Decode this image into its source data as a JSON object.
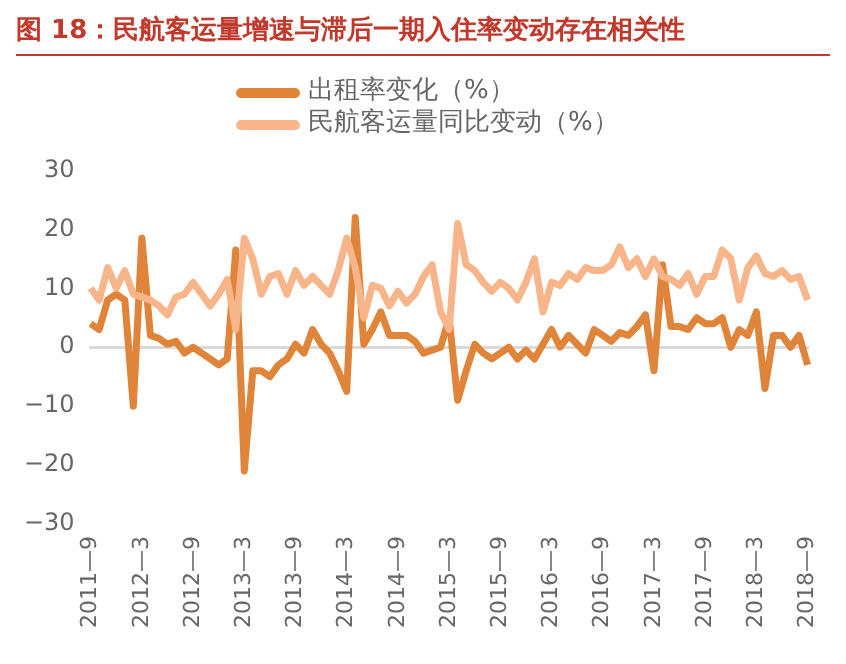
{
  "chart_data": {
    "type": "line",
    "title": "图 18：民航客运量增速与滞后一期入住率变动存在相关性",
    "categories": [
      "2011—9",
      null,
      null,
      null,
      null,
      null,
      "2012—3",
      null,
      null,
      null,
      null,
      null,
      "2012—9",
      null,
      null,
      null,
      null,
      null,
      "2013—3",
      null,
      null,
      null,
      null,
      null,
      "2013—9",
      null,
      null,
      null,
      null,
      null,
      "2014—3",
      null,
      null,
      null,
      null,
      null,
      "2014—9",
      null,
      null,
      null,
      null,
      null,
      "2015—3",
      null,
      null,
      null,
      null,
      null,
      "2015—9",
      null,
      null,
      null,
      null,
      null,
      "2016—3",
      null,
      null,
      null,
      null,
      null,
      "2016—9",
      null,
      null,
      null,
      null,
      null,
      "2017—3",
      null,
      null,
      null,
      null,
      null,
      "2017—9",
      null,
      null,
      null,
      null,
      null,
      "2018—3",
      null,
      null,
      null,
      null,
      null,
      "2018—9"
    ],
    "series": [
      {
        "name": "出租率变化（%）",
        "color": "#e0843a",
        "values": [
          4,
          3,
          8,
          9,
          8,
          -10,
          18.5,
          2,
          1.5,
          0.5,
          1,
          -1,
          0,
          -1,
          -2,
          -3,
          -2,
          16.5,
          -21,
          -4,
          -4,
          -5,
          -3,
          -2,
          0.5,
          -1,
          3,
          0.5,
          -1,
          -4,
          -7.5,
          22,
          0.5,
          3,
          6,
          2,
          2,
          2,
          1,
          -1,
          -0.5,
          0,
          5,
          -9,
          -4,
          0.5,
          -1,
          -2,
          -1,
          0,
          -2,
          -0.5,
          -2,
          0.5,
          3,
          0,
          2,
          0.5,
          -1,
          3,
          2,
          1,
          2.5,
          2,
          3.5,
          5.5,
          -4,
          14,
          3.5,
          3.5,
          3,
          5,
          4,
          4,
          5,
          0,
          3,
          2,
          6,
          -7,
          2,
          2,
          0,
          2,
          -3
        ]
      },
      {
        "name": "民航客运量同比变动（%）",
        "color": "#f8b58a",
        "values": [
          10,
          8,
          13.5,
          10,
          13,
          9,
          8.5,
          8,
          7,
          5.5,
          8.5,
          9,
          11,
          9,
          7,
          9,
          11.5,
          3,
          18.5,
          15,
          9,
          12,
          12.5,
          9,
          13,
          10.5,
          12,
          10.5,
          9,
          13,
          18.5,
          13.5,
          5,
          10.5,
          10,
          7,
          9.5,
          7.5,
          9,
          12,
          14,
          6,
          3,
          21,
          14,
          13,
          11,
          9.5,
          11,
          10,
          8,
          11,
          15,
          6,
          11,
          10.5,
          12.5,
          11.5,
          13.5,
          13,
          13,
          14,
          17,
          13.5,
          15,
          12,
          15,
          12,
          11.5,
          10.5,
          12.5,
          9,
          12,
          12,
          16.5,
          15,
          8,
          13.5,
          15.5,
          12.5,
          12,
          13,
          11.5,
          12,
          8
        ]
      }
    ],
    "ylim": [
      -30,
      30
    ],
    "yticks": [
      -30,
      -20,
      -10,
      0,
      10,
      20,
      30
    ],
    "legend": "top",
    "marker": "none",
    "line_style": "solid"
  }
}
